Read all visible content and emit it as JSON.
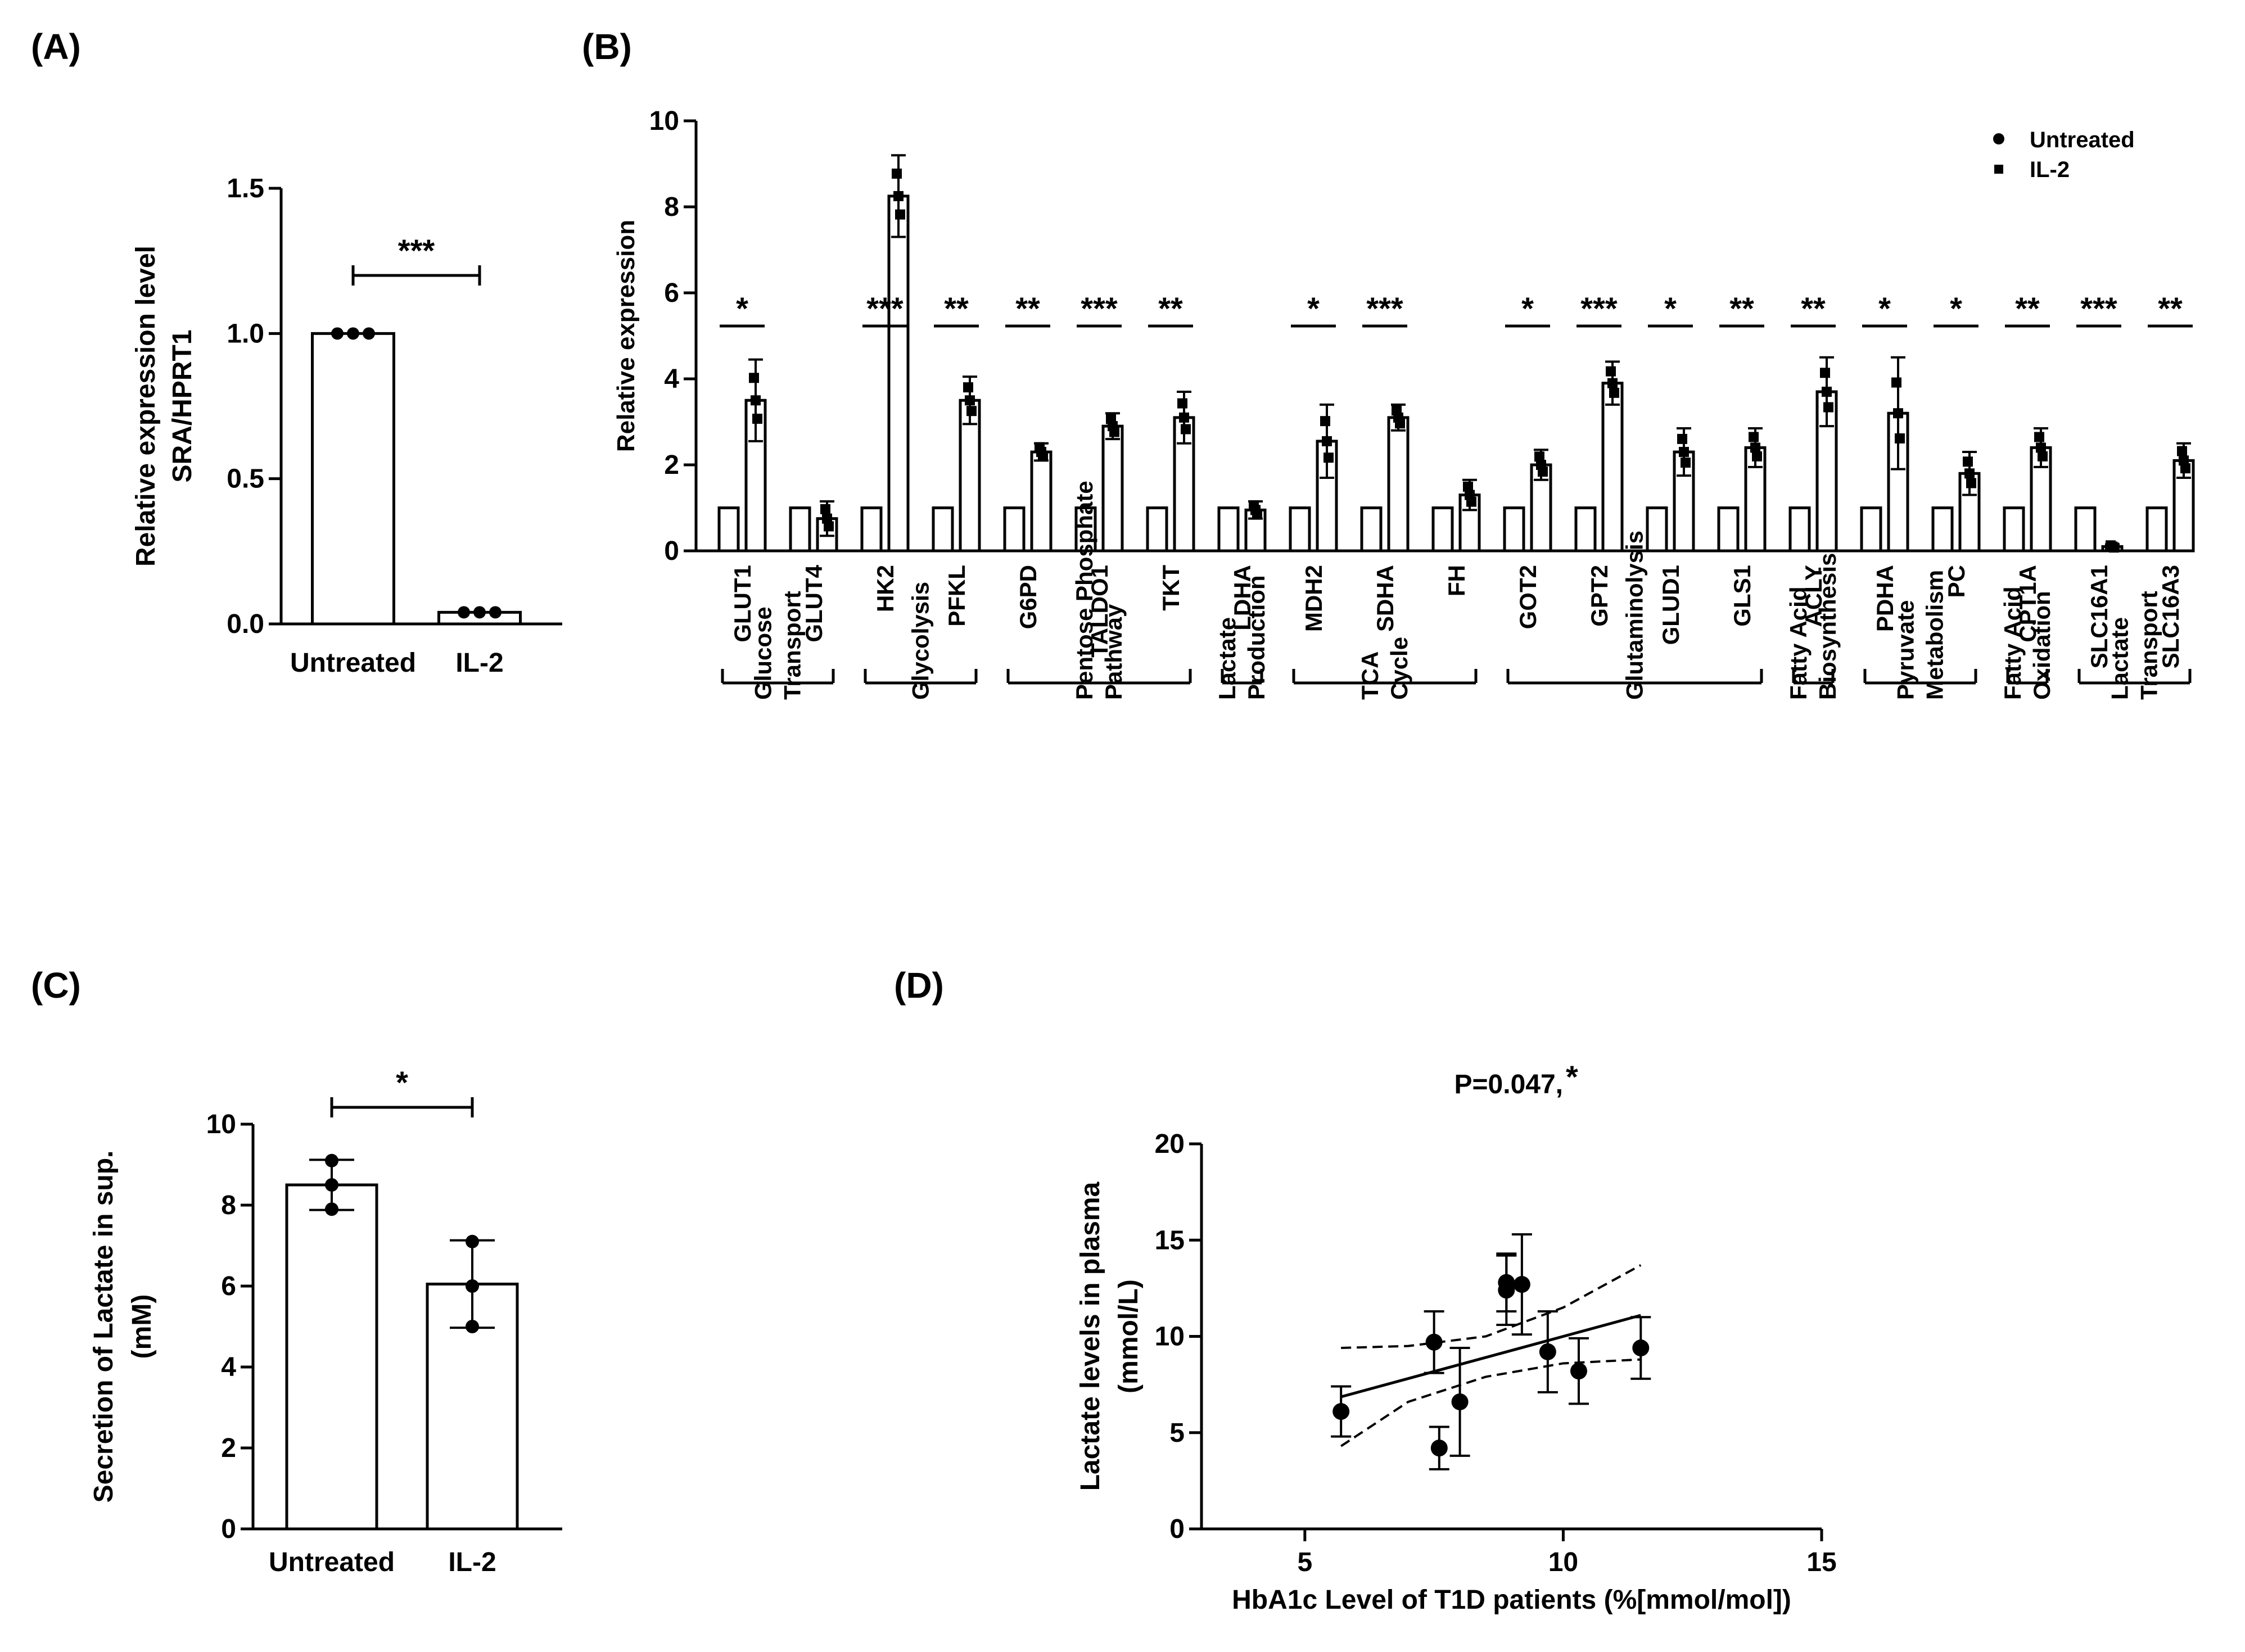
{
  "panels": {
    "A": "(A)",
    "B": "(B)",
    "C": "(C)",
    "D": "(D)"
  },
  "chart_data": [
    {
      "panel": "A",
      "type": "bar",
      "categories": [
        "Untreated",
        "IL-2"
      ],
      "values": [
        1.0,
        0.04
      ],
      "points": [
        [
          1.0,
          1.0,
          1.0
        ],
        [
          0.04,
          0.04,
          0.04
        ]
      ],
      "ylabel_lines": [
        "Relative expression level",
        "SRA/HPRT1"
      ],
      "ylim": [
        0,
        1.5
      ],
      "yticks": [
        "0.0",
        "0.5",
        "1.0",
        "1.5"
      ],
      "significance": "***"
    },
    {
      "panel": "B",
      "type": "bar",
      "ylabel": "Relative expression",
      "ylim": [
        0,
        10
      ],
      "yticks": [
        "0",
        "2",
        "4",
        "6",
        "8",
        "10"
      ],
      "legend": [
        "Untreated",
        "IL-2"
      ],
      "legend_position": "top-right",
      "categories": [
        "GLUT1",
        "GLUT4",
        "HK2",
        "PFKL",
        "G6PD",
        "TALDO1",
        "TKT",
        "LDHA",
        "MDH2",
        "SDHA",
        "FH",
        "GOT2",
        "GPT2",
        "GLUD1",
        "GLS1",
        "ACLY",
        "PDHA",
        "PC",
        "CPT1A",
        "SLC16A1",
        "SLC16A3"
      ],
      "series": [
        {
          "name": "Untreated",
          "values": [
            1,
            1,
            1,
            1,
            1,
            1,
            1,
            1,
            1,
            1,
            1,
            1,
            1,
            1,
            1,
            1,
            1,
            1,
            1,
            1,
            1
          ]
        },
        {
          "name": "IL-2",
          "values": [
            3.5,
            0.75,
            8.25,
            3.5,
            2.3,
            2.9,
            3.1,
            0.95,
            2.55,
            3.1,
            1.3,
            2.0,
            3.9,
            2.3,
            2.4,
            3.7,
            3.2,
            1.8,
            2.4,
            0.1,
            2.1
          ]
        }
      ],
      "errors_il2": [
        0.95,
        0.4,
        0.95,
        0.55,
        0.2,
        0.3,
        0.6,
        0.2,
        0.85,
        0.3,
        0.35,
        0.35,
        0.5,
        0.55,
        0.45,
        0.8,
        1.3,
        0.5,
        0.45,
        0.05,
        0.4
      ],
      "significance": [
        "*",
        "",
        "***",
        "**",
        "**",
        "***",
        "**",
        "",
        "*",
        "***",
        "",
        "*",
        "***",
        "*",
        "**",
        "**",
        "*",
        "*",
        "**",
        "***",
        "**"
      ],
      "groups": [
        {
          "lines": [
            "Glucose",
            "Transport"
          ],
          "span": [
            0,
            1
          ]
        },
        {
          "lines": [
            "Glycolysis"
          ],
          "span": [
            2,
            3
          ]
        },
        {
          "lines": [
            "Pentose Phosphate",
            "Pathway"
          ],
          "span": [
            4,
            6
          ]
        },
        {
          "lines": [
            "Lactate",
            "Production"
          ],
          "span": [
            7,
            7
          ]
        },
        {
          "lines": [
            "TCA",
            "Cycle"
          ],
          "span": [
            8,
            10
          ]
        },
        {
          "lines": [
            "Glutaminolysis"
          ],
          "span": [
            11,
            14
          ]
        },
        {
          "lines": [
            "Fatty Acid",
            "Biosynthesis"
          ],
          "span": [
            15,
            15
          ]
        },
        {
          "lines": [
            "Pyruvate",
            "Metabolism"
          ],
          "span": [
            16,
            17
          ]
        },
        {
          "lines": [
            "Fatty Acid",
            "Oxidation"
          ],
          "span": [
            18,
            18
          ]
        },
        {
          "lines": [
            "Lactate",
            "Transport"
          ],
          "span": [
            19,
            20
          ]
        }
      ]
    },
    {
      "panel": "C",
      "type": "bar",
      "categories": [
        "Untreated",
        "IL-2"
      ],
      "values": [
        8.5,
        6.05
      ],
      "errors": [
        0.62,
        1.08
      ],
      "points": [
        [
          9.1,
          8.5,
          7.9
        ],
        [
          7.1,
          6.0,
          5.0
        ]
      ],
      "ylabel_lines": [
        "Secretion of Lactate in sup.",
        "(mM)"
      ],
      "ylim": [
        0,
        10
      ],
      "yticks": [
        "0",
        "2",
        "4",
        "6",
        "8",
        "10"
      ],
      "significance": "*"
    },
    {
      "panel": "D",
      "type": "scatter",
      "title": "P=0.047, ",
      "title_star": "*",
      "xlabel": "HbA1c Level of T1D patients (%[mmol/mol])",
      "ylabel_lines": [
        "Lactate levels in plasma",
        "(mmol/L)"
      ],
      "xlim": [
        3,
        15
      ],
      "ylim": [
        0,
        20
      ],
      "xticks": [
        "5",
        "10",
        "15"
      ],
      "yticks": [
        "0",
        "5",
        "10",
        "15",
        "20"
      ],
      "x": [
        5.7,
        7.5,
        7.6,
        8.0,
        8.9,
        8.9,
        9.2,
        9.7,
        10.3,
        11.5
      ],
      "y": [
        6.1,
        9.7,
        4.2,
        6.6,
        12.4,
        12.8,
        12.7,
        9.2,
        8.2,
        9.4
      ],
      "yerr": [
        1.3,
        1.6,
        1.1,
        2.8,
        1.8,
        1.5,
        2.6,
        2.1,
        1.7,
        1.6
      ],
      "fit": {
        "slope": 0.73,
        "intercept": 2.7,
        "x_range": [
          5.7,
          11.5
        ]
      },
      "ci_lower": [
        [
          5.7,
          4.3
        ],
        [
          7.0,
          6.6
        ],
        [
          8.5,
          7.9
        ],
        [
          10.0,
          8.6
        ],
        [
          11.5,
          8.8
        ]
      ],
      "ci_upper": [
        [
          5.7,
          9.4
        ],
        [
          7.0,
          9.5
        ],
        [
          8.5,
          10.0
        ],
        [
          10.0,
          11.5
        ],
        [
          11.5,
          13.7
        ]
      ]
    }
  ]
}
